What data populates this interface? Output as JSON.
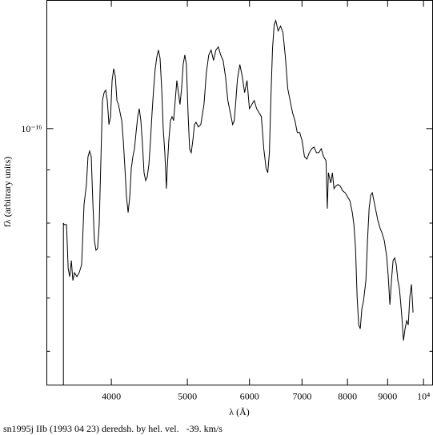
{
  "chart_data": {
    "type": "line",
    "xlabel": "λ (Å)",
    "ylabel": "fλ (arbitrary units)",
    "caption": "sn1995j IIb (1993 04 23) deredsh. by hel. vel.   -39. km/s",
    "xscale": "log",
    "yscale": "log",
    "color": "#000000",
    "xlim": [
      3310,
      10270
    ],
    "xticks": [
      4000,
      5000,
      6000,
      7000,
      8000,
      9000,
      {
        "value": 10000,
        "label": "10⁴"
      }
    ],
    "ylim": [
      2.5e-17,
      2e-16
    ],
    "yticks": [
      {
        "value": 1e-16,
        "label": "10⁻¹⁶"
      }
    ],
    "yminor_ticks": [
      8e-17,
      6e-17,
      5e-17,
      4e-17,
      3e-17
    ],
    "x": [
      3475,
      3475,
      3483,
      3507,
      3524,
      3540,
      3557,
      3573,
      3590,
      3615,
      3640,
      3666,
      3692,
      3718,
      3735,
      3753,
      3771,
      3788,
      3806,
      3824,
      3842,
      3860,
      3879,
      3897,
      3916,
      3934,
      3953,
      3972,
      3991,
      4009,
      4028,
      4047,
      4066,
      4085,
      4104,
      4124,
      4143,
      4163,
      4182,
      4202,
      4222,
      4241,
      4261,
      4281,
      4301,
      4322,
      4342,
      4362,
      4383,
      4403,
      4424,
      4445,
      4466,
      4487,
      4508,
      4529,
      4550,
      4572,
      4593,
      4615,
      4637,
      4658,
      4680,
      4702,
      4713,
      4735,
      4758,
      4780,
      4802,
      4825,
      4848,
      4870,
      4893,
      4916,
      4939,
      4963,
      4986,
      5010,
      5033,
      5057,
      5081,
      5105,
      5129,
      5165,
      5201,
      5250,
      5287,
      5324,
      5361,
      5399,
      5437,
      5475,
      5514,
      5553,
      5592,
      5631,
      5671,
      5711,
      5738,
      5765,
      5792,
      5833,
      5874,
      5915,
      5957,
      5999,
      6041,
      6084,
      6127,
      6170,
      6213,
      6257,
      6301,
      6331,
      6361,
      6390,
      6420,
      6451,
      6481,
      6527,
      6573,
      6619,
      6666,
      6713,
      6760,
      6808,
      6856,
      6904,
      6953,
      7002,
      7051,
      7101,
      7151,
      7201,
      7252,
      7303,
      7355,
      7406,
      7459,
      7511,
      7540,
      7564,
      7618,
      7653,
      7689,
      7725,
      7780,
      7834,
      7890,
      7945,
      8001,
      8057,
      8114,
      8152,
      8191,
      8229,
      8268,
      8306,
      8345,
      8385,
      8444,
      8484,
      8524,
      8564,
      8604,
      8645,
      8685,
      8747,
      8808,
      8850,
      8912,
      8975,
      9017,
      9060,
      9102,
      9145,
      9188,
      9231,
      9275,
      9318,
      9384,
      9428,
      9473,
      9517,
      9562,
      9607,
      9652,
      9698
    ],
    "values": [
      2.5e-17,
      6e-17,
      5.95e-17,
      5.95e-17,
      4.69e-17,
      4.49e-17,
      4.9e-17,
      4.4e-17,
      4.59e-17,
      4.49e-17,
      4.59e-17,
      4.79e-17,
      6.63e-17,
      7.39e-17,
      8.59e-17,
      8.86e-17,
      8.59e-17,
      6.77e-17,
      5.46e-17,
      5.18e-17,
      5.23e-17,
      5.95e-17,
      8.41e-17,
      1.164e-16,
      1.215e-16,
      1.231e-16,
      1.164e-16,
      1.022e-16,
      1.067e-16,
      1.297e-16,
      1.383e-16,
      1.325e-16,
      1.164e-16,
      1.139e-16,
      1.09e-16,
      1.044e-16,
      9.37e-17,
      8.05e-17,
      6.92e-17,
      6.35e-17,
      6.92e-17,
      8.05e-17,
      8.59e-17,
      8.97e-17,
      9.79e-17,
      1.067e-16,
      1.114e-16,
      1.044e-16,
      9.17e-17,
      7.88e-17,
      7.55e-17,
      7.71e-17,
      8.23e-17,
      9.37e-17,
      1.09e-16,
      1.242e-16,
      1.383e-16,
      1.476e-16,
      1.529e-16,
      1.463e-16,
      1.242e-16,
      1e-16,
      8.78e-17,
      7.23e-17,
      8.05e-17,
      9.37e-17,
      1.044e-16,
      1.067e-16,
      1.044e-16,
      1.164e-16,
      1.297e-16,
      1.215e-16,
      1.139e-16,
      1.242e-16,
      1.414e-16,
      1.489e-16,
      1.414e-16,
      1.09e-16,
      8.97e-17,
      8.78e-17,
      9.37e-17,
      1.022e-16,
      1.035e-16,
      1.009e-16,
      1.022e-16,
      1.139e-16,
      1.354e-16,
      1.489e-16,
      1.529e-16,
      1.445e-16,
      1.529e-16,
      1.555e-16,
      1.489e-16,
      1.445e-16,
      1.325e-16,
      1.164e-16,
      1.09e-16,
      1.022e-16,
      1.044e-16,
      1.164e-16,
      1.308e-16,
      1.414e-16,
      1.325e-16,
      1.215e-16,
      1.297e-16,
      1.114e-16,
      1.139e-16,
      1.164e-16,
      1.114e-16,
      1.09e-16,
      1.067e-16,
      8.97e-17,
      8.05e-17,
      7.88e-17,
      8.78e-17,
      1.189e-16,
      1.542e-16,
      1.756e-16,
      1.794e-16,
      1.696e-16,
      1.74e-16,
      1.681e-16,
      1.476e-16,
      1.242e-16,
      1.164e-16,
      1.09e-16,
      1.044e-16,
      9.79e-17,
      9.79e-17,
      9.37e-17,
      8.59e-17,
      8.48e-17,
      8.78e-17,
      8.97e-17,
      9.05e-17,
      8.78e-17,
      8.78e-17,
      8.97e-17,
      8.59e-17,
      8.41e-17,
      6.49e-17,
      7.88e-17,
      7.45e-17,
      7.88e-17,
      7.23e-17,
      7.32e-17,
      7.39e-17,
      7.32e-17,
      7.14e-17,
      7.07e-17,
      6.92e-17,
      6.77e-17,
      6.35e-17,
      5.95e-17,
      5.23e-17,
      4.03e-17,
      3.46e-17,
      3.39e-17,
      3.78e-17,
      3.94e-17,
      4.4e-17,
      5.46e-17,
      6.49e-17,
      6.98e-17,
      7.07e-17,
      6.77e-17,
      6.49e-17,
      6.08e-17,
      5.82e-17,
      5.7e-17,
      5.46e-17,
      5.01e-17,
      4.49e-17,
      3.86e-17,
      4.4e-17,
      4.9e-17,
      4.97e-17,
      4.79e-17,
      4.4e-17,
      4.21e-17,
      3.62e-17,
      3.18e-17,
      3.39e-17,
      3.54e-17,
      3.46e-17,
      4.03e-17,
      4.31e-17,
      3.7e-17
    ]
  }
}
